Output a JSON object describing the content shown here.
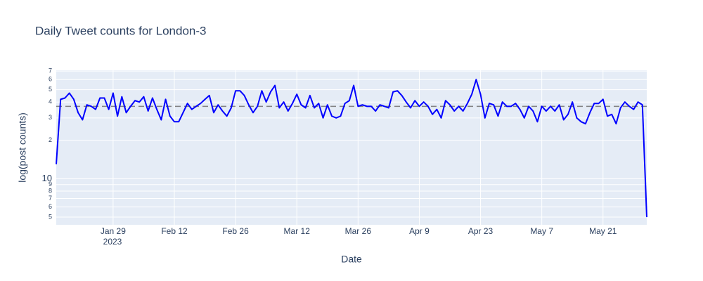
{
  "chart_data": {
    "type": "line",
    "title": "Daily Tweet counts for London-3",
    "x_label": "Date",
    "y_label": "log(post counts)",
    "log_y": true,
    "grid": true,
    "x": [
      "2023-01-16",
      "2023-01-17",
      "2023-01-18",
      "2023-01-19",
      "2023-01-20",
      "2023-01-21",
      "2023-01-22",
      "2023-01-23",
      "2023-01-24",
      "2023-01-25",
      "2023-01-26",
      "2023-01-27",
      "2023-01-28",
      "2023-01-29",
      "2023-01-30",
      "2023-01-31",
      "2023-02-01",
      "2023-02-02",
      "2023-02-03",
      "2023-02-04",
      "2023-02-05",
      "2023-02-06",
      "2023-02-07",
      "2023-02-08",
      "2023-02-09",
      "2023-02-10",
      "2023-02-11",
      "2023-02-12",
      "2023-02-13",
      "2023-02-14",
      "2023-02-15",
      "2023-02-16",
      "2023-02-17",
      "2023-02-18",
      "2023-02-19",
      "2023-02-20",
      "2023-02-21",
      "2023-02-22",
      "2023-02-23",
      "2023-02-24",
      "2023-02-25",
      "2023-02-26",
      "2023-02-27",
      "2023-02-28",
      "2023-03-01",
      "2023-03-02",
      "2023-03-03",
      "2023-03-04",
      "2023-03-05",
      "2023-03-06",
      "2023-03-07",
      "2023-03-08",
      "2023-03-09",
      "2023-03-10",
      "2023-03-11",
      "2023-03-12",
      "2023-03-13",
      "2023-03-14",
      "2023-03-15",
      "2023-03-16",
      "2023-03-17",
      "2023-03-18",
      "2023-03-19",
      "2023-03-20",
      "2023-03-21",
      "2023-03-22",
      "2023-03-23",
      "2023-03-24",
      "2023-03-25",
      "2023-03-26",
      "2023-03-27",
      "2023-03-28",
      "2023-03-29",
      "2023-03-30",
      "2023-03-31",
      "2023-04-01",
      "2023-04-02",
      "2023-04-03",
      "2023-04-04",
      "2023-04-05",
      "2023-04-06",
      "2023-04-07",
      "2023-04-08",
      "2023-04-09",
      "2023-04-10",
      "2023-04-11",
      "2023-04-12",
      "2023-04-13",
      "2023-04-14",
      "2023-04-15",
      "2023-04-16",
      "2023-04-17",
      "2023-04-18",
      "2023-04-19",
      "2023-04-20",
      "2023-04-21",
      "2023-04-22",
      "2023-04-23",
      "2023-04-24",
      "2023-04-25",
      "2023-04-26",
      "2023-04-27",
      "2023-04-28",
      "2023-04-29",
      "2023-04-30",
      "2023-05-01",
      "2023-05-02",
      "2023-05-03",
      "2023-05-04",
      "2023-05-05",
      "2023-05-06",
      "2023-05-07",
      "2023-05-08",
      "2023-05-09",
      "2023-05-10",
      "2023-05-11",
      "2023-05-12",
      "2023-05-13",
      "2023-05-14",
      "2023-05-15",
      "2023-05-16",
      "2023-05-17",
      "2023-05-18",
      "2023-05-19",
      "2023-05-20",
      "2023-05-21",
      "2023-05-22",
      "2023-05-23",
      "2023-05-24",
      "2023-05-25",
      "2023-05-26",
      "2023-05-27",
      "2023-05-28",
      "2023-05-29",
      "2023-05-30",
      "2023-05-31"
    ],
    "series": [
      {
        "name": "London-3",
        "color": "#0000ff",
        "values": [
          13,
          42,
          43,
          47,
          42,
          33,
          29,
          38,
          37,
          35,
          43,
          43,
          35,
          47,
          31,
          44,
          33,
          37,
          41,
          40,
          44,
          34,
          43,
          35,
          29,
          42,
          31,
          28,
          28,
          33,
          39,
          35,
          37,
          39,
          42,
          45,
          33,
          38,
          34,
          31,
          36,
          49,
          49,
          45,
          38,
          33,
          37,
          49,
          40,
          48,
          54,
          36,
          40,
          34,
          39,
          46,
          38,
          36,
          45,
          36,
          39,
          30,
          38,
          31,
          30,
          31,
          39,
          41,
          54,
          37,
          38,
          37,
          37,
          34,
          38,
          37,
          36,
          48,
          49,
          45,
          40,
          36,
          41,
          37,
          40,
          37,
          32,
          35,
          30,
          41,
          38,
          34,
          37,
          34,
          39,
          46,
          60,
          46,
          30,
          39,
          38,
          31,
          40,
          37,
          37,
          39,
          35,
          30,
          37,
          34,
          28,
          37,
          34,
          37,
          34,
          38,
          29,
          32,
          40,
          30,
          28,
          27,
          33,
          39,
          39,
          42,
          31,
          32,
          27,
          36,
          40,
          37,
          35,
          40,
          38,
          5
        ]
      }
    ],
    "reference_line": {
      "value": 37,
      "color": "#808080"
    },
    "xlim": [
      "2023-01-16",
      "2023-05-31"
    ],
    "xticks": [
      {
        "value": "2023-01-29",
        "label": "Jan 29"
      },
      {
        "value": "2023-02-12",
        "label": "Feb 12"
      },
      {
        "value": "2023-02-26",
        "label": "Feb 26"
      },
      {
        "value": "2023-03-12",
        "label": "Mar 12"
      },
      {
        "value": "2023-03-26",
        "label": "Mar 26"
      },
      {
        "value": "2023-04-09",
        "label": "Apr 9"
      },
      {
        "value": "2023-04-23",
        "label": "Apr 23"
      },
      {
        "value": "2023-05-07",
        "label": "May 7"
      },
      {
        "value": "2023-05-21",
        "label": "May 21"
      }
    ],
    "x_year_label": "2023",
    "ylim": [
      4.35,
      71
    ],
    "yticks": [
      5,
      6,
      7,
      8,
      9,
      10,
      {
        "value": 20,
        "label": "2"
      },
      {
        "value": 30,
        "label": "3"
      },
      {
        "value": 40,
        "label": "4"
      },
      {
        "value": 50,
        "label": "5"
      },
      {
        "value": 60,
        "label": "6"
      },
      {
        "value": 70,
        "label": "7"
      }
    ]
  }
}
